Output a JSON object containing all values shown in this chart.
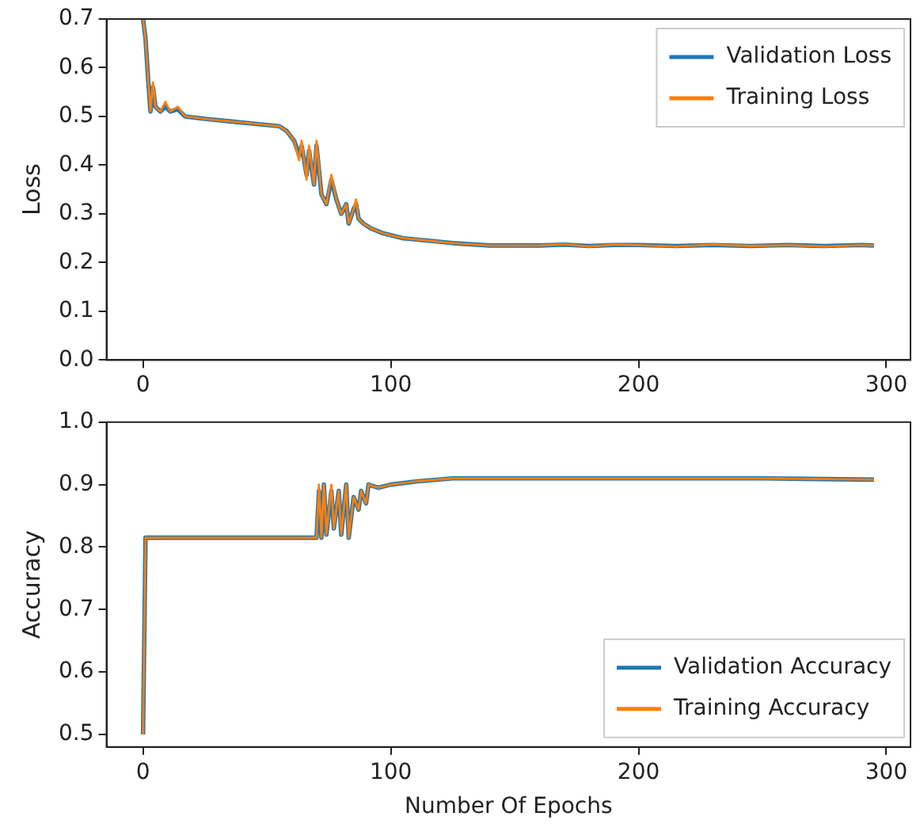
{
  "chart_data": [
    {
      "type": "line",
      "ylabel": "Loss",
      "xlim": [
        -14.75,
        309.75
      ],
      "xticks": [
        0,
        100,
        200,
        300
      ],
      "ylim": [
        0,
        0.7
      ],
      "yticks": [
        {
          "value": 0,
          "label": "0.0"
        },
        0.1,
        0.2,
        0.3,
        0.4,
        0.5,
        0.6,
        0.7
      ],
      "grid": false,
      "legend": "top right",
      "marker": "none",
      "line_style": "solid",
      "x": [
        0,
        1,
        2,
        3,
        4,
        5,
        7,
        9,
        11,
        14,
        17,
        25,
        35,
        45,
        55,
        58,
        61,
        63,
        64,
        66,
        67,
        69,
        70,
        72,
        74,
        76,
        78,
        80,
        82,
        83,
        85,
        86,
        87,
        89,
        92,
        97,
        105,
        115,
        125,
        140,
        160,
        170,
        180,
        190,
        200,
        215,
        230,
        245,
        260,
        275,
        290,
        295
      ],
      "series": [
        {
          "name": "Validation Loss",
          "color": "#1f77b4",
          "values": [
            0.7,
            0.66,
            0.58,
            0.51,
            0.56,
            0.52,
            0.51,
            0.52,
            0.51,
            0.515,
            0.5,
            0.495,
            0.49,
            0.485,
            0.48,
            0.47,
            0.45,
            0.42,
            0.44,
            0.38,
            0.43,
            0.36,
            0.44,
            0.34,
            0.32,
            0.37,
            0.33,
            0.3,
            0.32,
            0.28,
            0.31,
            0.32,
            0.29,
            0.28,
            0.27,
            0.26,
            0.25,
            0.245,
            0.24,
            0.235,
            0.235,
            0.237,
            0.234,
            0.236,
            0.236,
            0.234,
            0.236,
            0.234,
            0.236,
            0.234,
            0.236,
            0.235
          ]
        },
        {
          "name": "Training Loss",
          "color": "#ff7f0e",
          "values": [
            0.7,
            0.66,
            0.58,
            0.51,
            0.57,
            0.52,
            0.51,
            0.53,
            0.51,
            0.52,
            0.5,
            0.495,
            0.49,
            0.485,
            0.48,
            0.47,
            0.45,
            0.41,
            0.45,
            0.37,
            0.44,
            0.36,
            0.45,
            0.34,
            0.32,
            0.38,
            0.33,
            0.3,
            0.32,
            0.28,
            0.31,
            0.33,
            0.29,
            0.28,
            0.27,
            0.26,
            0.25,
            0.245,
            0.24,
            0.235,
            0.235,
            0.238,
            0.233,
            0.237,
            0.236,
            0.233,
            0.237,
            0.234,
            0.236,
            0.233,
            0.236,
            0.235
          ]
        }
      ]
    },
    {
      "type": "line",
      "xlabel": "Number Of Epochs",
      "ylabel": "Accuracy",
      "xlim": [
        -14.75,
        309.75
      ],
      "xticks": [
        0,
        100,
        200,
        300
      ],
      "ylim": [
        0.48,
        1.0
      ],
      "yticks": [
        0.5,
        0.6,
        0.7,
        0.8,
        0.9,
        {
          "value": 1,
          "label": "1.0"
        }
      ],
      "grid": false,
      "legend": "bottom right",
      "marker": "none",
      "line_style": "solid",
      "x": [
        0,
        1,
        70,
        71,
        72,
        73,
        74,
        76,
        77,
        79,
        80,
        82,
        83,
        85,
        87,
        88,
        90,
        91,
        95,
        100,
        110,
        125,
        150,
        200,
        250,
        295
      ],
      "series": [
        {
          "name": "Validation Accuracy",
          "color": "#1f77b4",
          "values": [
            0.5,
            0.815,
            0.815,
            0.89,
            0.815,
            0.9,
            0.82,
            0.89,
            0.83,
            0.89,
            0.82,
            0.9,
            0.815,
            0.88,
            0.86,
            0.89,
            0.87,
            0.9,
            0.895,
            0.9,
            0.905,
            0.91,
            0.91,
            0.91,
            0.91,
            0.908
          ]
        },
        {
          "name": "Training Accuracy",
          "color": "#ff7f0e",
          "values": [
            0.5,
            0.815,
            0.815,
            0.9,
            0.815,
            0.9,
            0.82,
            0.9,
            0.83,
            0.89,
            0.82,
            0.9,
            0.815,
            0.88,
            0.86,
            0.89,
            0.87,
            0.9,
            0.895,
            0.9,
            0.905,
            0.91,
            0.91,
            0.91,
            0.91,
            0.908
          ]
        }
      ]
    }
  ]
}
